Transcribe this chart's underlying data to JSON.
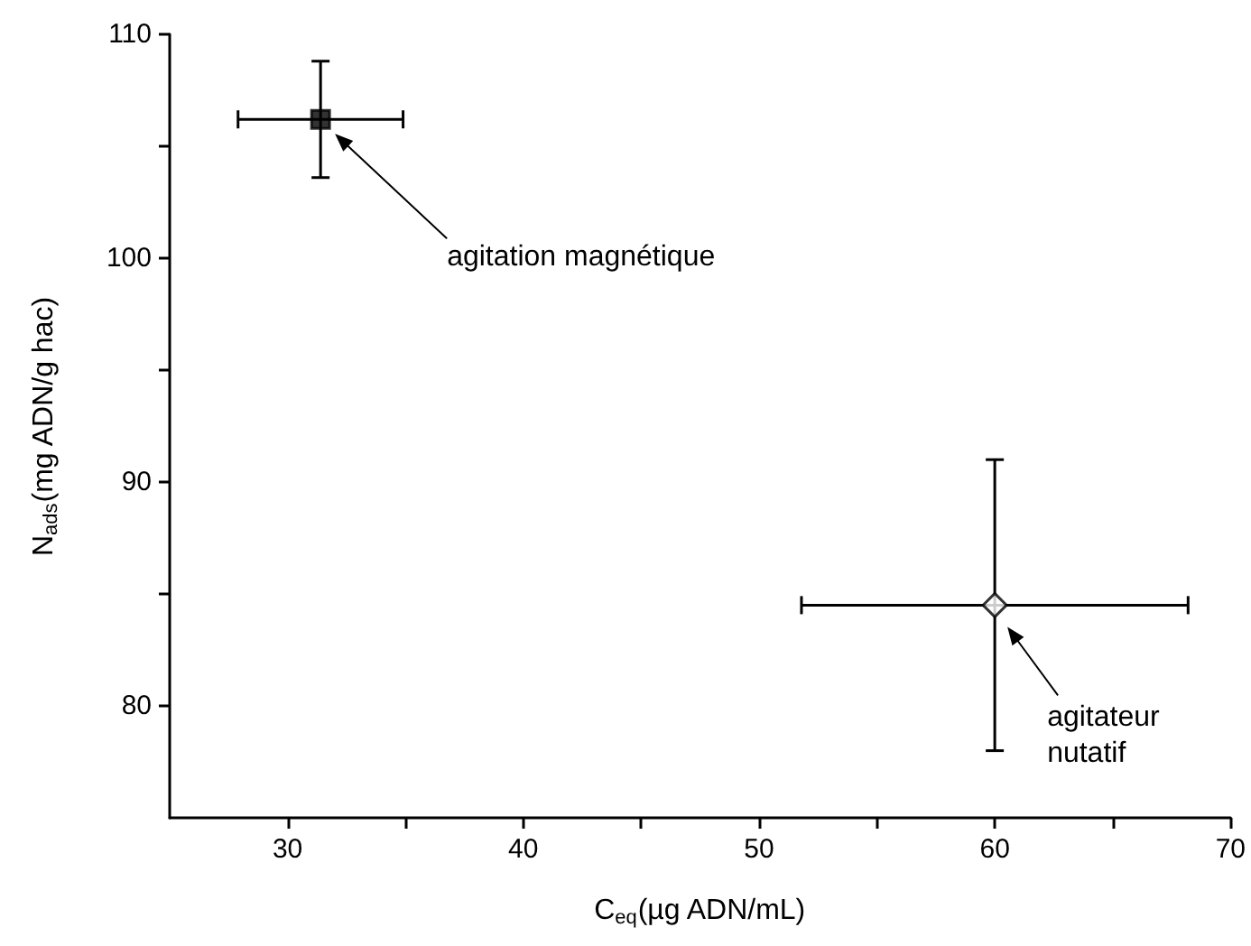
{
  "chart_data": {
    "type": "scatter",
    "xlabel": "C$_{eq}$(µg ADN/mL)",
    "ylabel": "N$_{ads}$(mg ADN/g hac)",
    "xlim": [
      25,
      70
    ],
    "xticks": [
      30,
      {
        "value": 35,
        "label": null
      },
      40,
      {
        "value": 45,
        "label": null
      },
      50,
      {
        "value": 55,
        "label": null
      },
      60,
      {
        "value": 65,
        "label": null
      },
      70
    ],
    "ylim": [
      75,
      110
    ],
    "yticks": [
      80,
      {
        "value": 85,
        "label": null
      },
      90,
      {
        "value": 95,
        "label": null
      },
      100,
      {
        "value": 105,
        "label": null
      },
      110
    ],
    "grid": false,
    "series": [
      {
        "color": "#000000",
        "marker": "square",
        "x": [
          31.4
        ],
        "values": [
          106.2
        ],
        "errors": [
          2.6
        ],
        "xerrors": [
          3.5
        ]
      },
      {
        "color": "#000000",
        "marker": "diamond",
        "x": [
          60
        ],
        "values": [
          84.5
        ],
        "errors": [
          6.5
        ],
        "xerrors": [
          8.2
        ]
      }
    ],
    "annotations": [
      "agitation magnétique",
      "agitateur nutatif"
    ]
  }
}
